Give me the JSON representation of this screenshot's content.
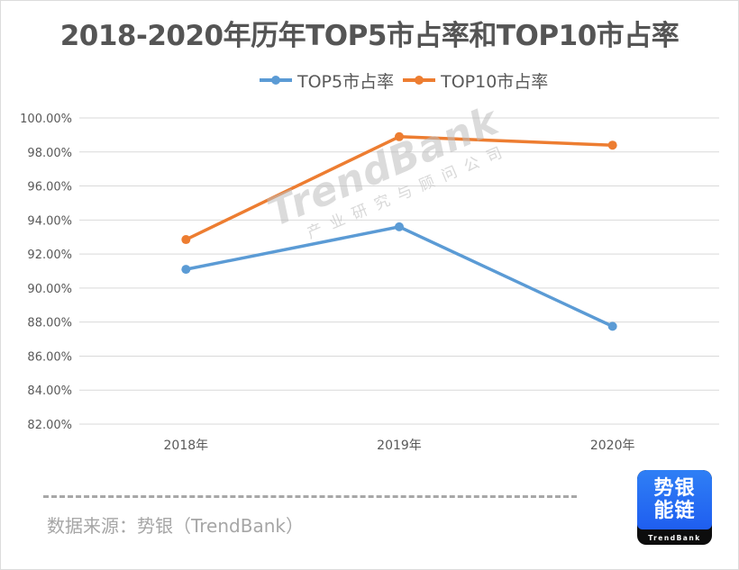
{
  "chart_data": {
    "type": "line",
    "title": "2018-2020年历年TOP5市占率和TOP10市占率",
    "categories": [
      "2018年",
      "2019年",
      "2020年"
    ],
    "series": [
      {
        "name": "TOP5市占率",
        "color": "#5b9bd5",
        "values": [
          91.1,
          93.6,
          87.75
        ]
      },
      {
        "name": "TOP10市占率",
        "color": "#ed7d31",
        "values": [
          92.85,
          98.9,
          98.4
        ]
      }
    ],
    "xlabel": "",
    "ylabel": "",
    "ylim": [
      82,
      100
    ],
    "yticks": [
      82,
      84,
      86,
      88,
      90,
      92,
      94,
      96,
      98,
      100
    ],
    "ytick_labels": [
      "82.00%",
      "84.00%",
      "86.00%",
      "88.00%",
      "90.00%",
      "92.00%",
      "94.00%",
      "96.00%",
      "98.00%",
      "100.00%"
    ],
    "grid": true,
    "legend_position": "top-center"
  },
  "watermark": {
    "main": "TrendBank",
    "sub": "产业研究与顾问公司"
  },
  "footer": {
    "source": "数据来源：势银（TrendBank）"
  },
  "logo": {
    "line1": "势银",
    "line2": "能链",
    "brand": "TrendBank"
  }
}
